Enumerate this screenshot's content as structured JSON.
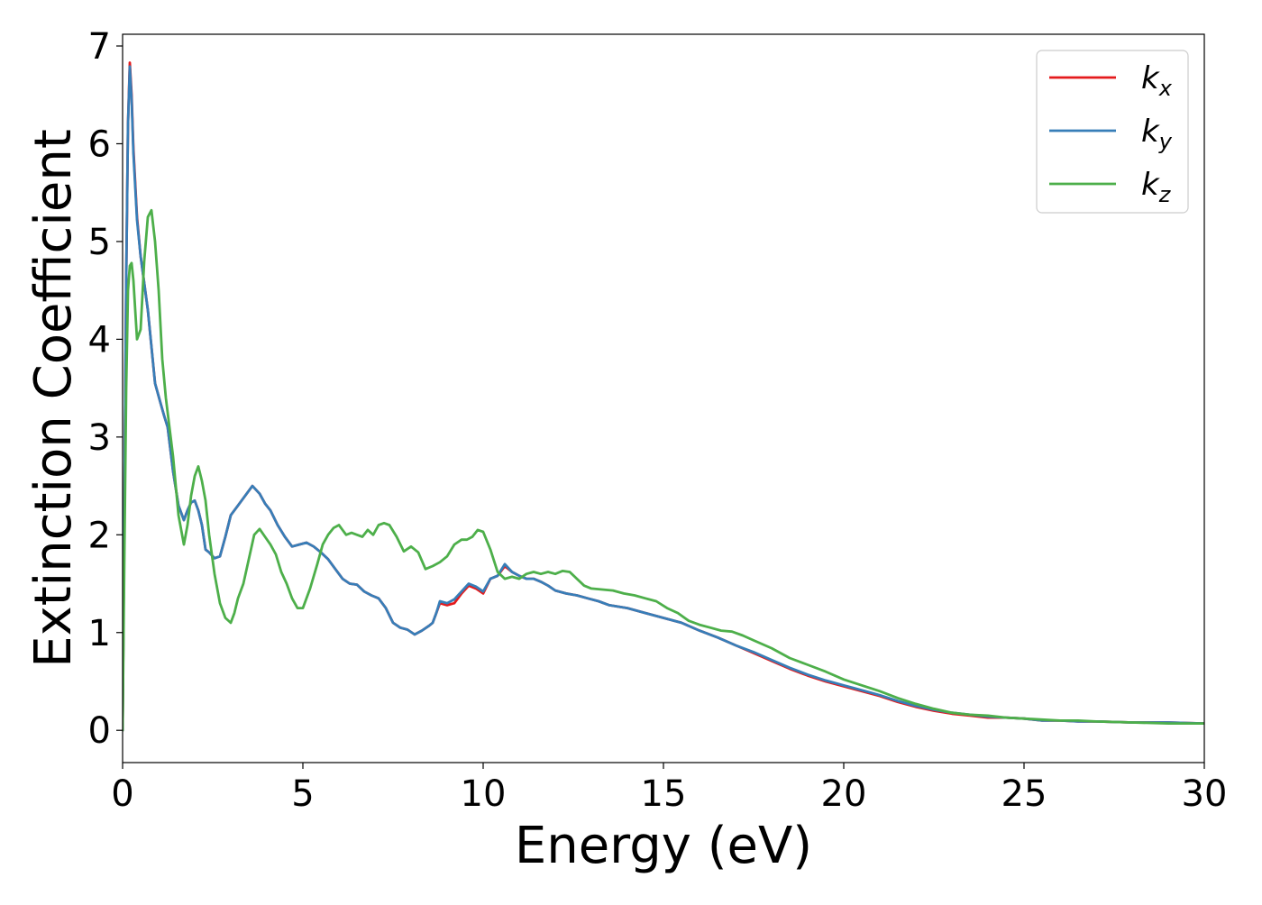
{
  "chart_data": {
    "type": "line",
    "title": "",
    "xlabel": "Energy (eV)",
    "ylabel": "Extinction Coefficient",
    "xlim": [
      0,
      30
    ],
    "ylim": [
      -0.33,
      7.12
    ],
    "xticks": [
      0,
      5,
      10,
      15,
      20,
      25,
      30
    ],
    "yticks": [
      0,
      1,
      2,
      3,
      4,
      5,
      6,
      7
    ],
    "grid": false,
    "legend_position": "top-right",
    "series": [
      {
        "name": "k_x",
        "label_main": "k",
        "label_sub": "x",
        "color": "#e41a1c",
        "x": [
          0,
          0.05,
          0.1,
          0.15,
          0.2,
          0.25,
          0.3,
          0.4,
          0.5,
          0.7,
          0.9,
          1.05,
          1.15,
          1.25,
          1.4,
          1.55,
          1.7,
          1.8,
          1.9,
          2.0,
          2.1,
          2.2,
          2.3,
          2.4,
          2.55,
          2.7,
          2.85,
          3.0,
          3.2,
          3.4,
          3.6,
          3.8,
          3.95,
          4.1,
          4.3,
          4.5,
          4.7,
          4.9,
          5.1,
          5.3,
          5.5,
          5.7,
          5.9,
          6.1,
          6.3,
          6.5,
          6.7,
          6.9,
          7.1,
          7.3,
          7.5,
          7.7,
          7.9,
          8.1,
          8.3,
          8.5,
          8.6,
          8.7,
          8.8,
          9.0,
          9.2,
          9.4,
          9.6,
          9.8,
          10.0,
          10.2,
          10.4,
          10.6,
          10.8,
          11.0,
          11.2,
          11.4,
          11.6,
          11.8,
          12.0,
          12.3,
          12.6,
          12.9,
          13.2,
          13.5,
          14.0,
          14.5,
          15.0,
          15.5,
          16.0,
          16.5,
          17.0,
          17.5,
          18.0,
          18.5,
          19.0,
          19.5,
          20.0,
          20.5,
          21.0,
          21.5,
          22.0,
          22.5,
          23.0,
          23.5,
          24.0,
          24.5,
          25.0,
          25.5,
          26.0,
          26.5,
          27.0,
          28.0,
          29.0,
          30.0
        ],
        "y": [
          0,
          2.3,
          4.6,
          6.2,
          6.83,
          6.5,
          5.95,
          5.25,
          4.85,
          4.3,
          3.55,
          3.35,
          3.22,
          3.1,
          2.65,
          2.3,
          2.15,
          2.25,
          2.33,
          2.35,
          2.25,
          2.1,
          1.85,
          1.82,
          1.76,
          1.78,
          1.98,
          2.2,
          2.3,
          2.4,
          2.5,
          2.42,
          2.32,
          2.25,
          2.1,
          1.98,
          1.88,
          1.9,
          1.92,
          1.88,
          1.82,
          1.75,
          1.65,
          1.55,
          1.5,
          1.49,
          1.42,
          1.38,
          1.35,
          1.25,
          1.1,
          1.05,
          1.03,
          0.98,
          1.02,
          1.07,
          1.1,
          1.2,
          1.3,
          1.28,
          1.3,
          1.4,
          1.48,
          1.45,
          1.4,
          1.55,
          1.58,
          1.68,
          1.62,
          1.58,
          1.55,
          1.55,
          1.52,
          1.48,
          1.43,
          1.4,
          1.38,
          1.35,
          1.32,
          1.28,
          1.25,
          1.2,
          1.15,
          1.1,
          1.02,
          0.95,
          0.87,
          0.79,
          0.71,
          0.63,
          0.56,
          0.5,
          0.45,
          0.4,
          0.35,
          0.29,
          0.24,
          0.2,
          0.17,
          0.15,
          0.13,
          0.13,
          0.12,
          0.1,
          0.1,
          0.09,
          0.09,
          0.08,
          0.08,
          0.07
        ]
      },
      {
        "name": "k_y",
        "label_main": "k",
        "label_sub": "y",
        "color": "#377eb8",
        "x": [
          0,
          0.05,
          0.1,
          0.15,
          0.2,
          0.25,
          0.3,
          0.4,
          0.5,
          0.7,
          0.9,
          1.05,
          1.15,
          1.25,
          1.4,
          1.55,
          1.7,
          1.8,
          1.9,
          2.0,
          2.1,
          2.2,
          2.3,
          2.4,
          2.55,
          2.7,
          2.85,
          3.0,
          3.2,
          3.4,
          3.6,
          3.8,
          3.95,
          4.1,
          4.3,
          4.5,
          4.7,
          4.9,
          5.1,
          5.3,
          5.5,
          5.7,
          5.9,
          6.1,
          6.3,
          6.5,
          6.7,
          6.9,
          7.1,
          7.3,
          7.5,
          7.7,
          7.9,
          8.1,
          8.3,
          8.5,
          8.6,
          8.7,
          8.8,
          9.0,
          9.2,
          9.4,
          9.6,
          9.8,
          10.0,
          10.2,
          10.4,
          10.6,
          10.8,
          11.0,
          11.2,
          11.4,
          11.6,
          11.8,
          12.0,
          12.3,
          12.6,
          12.9,
          13.2,
          13.5,
          14.0,
          14.5,
          15.0,
          15.5,
          16.0,
          16.5,
          17.0,
          17.5,
          18.0,
          18.5,
          19.0,
          19.5,
          20.0,
          20.5,
          21.0,
          21.5,
          22.0,
          22.5,
          23.0,
          23.5,
          24.0,
          24.5,
          25.0,
          25.5,
          26.0,
          26.5,
          27.0,
          28.0,
          29.0,
          30.0
        ],
        "y": [
          0,
          2.3,
          4.6,
          6.2,
          6.79,
          6.45,
          5.9,
          5.22,
          4.85,
          4.3,
          3.55,
          3.35,
          3.22,
          3.1,
          2.65,
          2.3,
          2.15,
          2.25,
          2.33,
          2.35,
          2.25,
          2.1,
          1.85,
          1.82,
          1.76,
          1.78,
          1.98,
          2.2,
          2.3,
          2.4,
          2.5,
          2.42,
          2.32,
          2.25,
          2.1,
          1.98,
          1.88,
          1.9,
          1.92,
          1.88,
          1.82,
          1.75,
          1.65,
          1.55,
          1.5,
          1.49,
          1.42,
          1.38,
          1.35,
          1.25,
          1.1,
          1.05,
          1.03,
          0.98,
          1.02,
          1.07,
          1.1,
          1.2,
          1.32,
          1.3,
          1.34,
          1.42,
          1.5,
          1.47,
          1.42,
          1.55,
          1.58,
          1.7,
          1.62,
          1.58,
          1.55,
          1.55,
          1.52,
          1.48,
          1.43,
          1.4,
          1.38,
          1.35,
          1.32,
          1.28,
          1.25,
          1.2,
          1.15,
          1.1,
          1.02,
          0.95,
          0.87,
          0.8,
          0.72,
          0.64,
          0.57,
          0.51,
          0.46,
          0.41,
          0.36,
          0.3,
          0.25,
          0.21,
          0.18,
          0.16,
          0.14,
          0.13,
          0.12,
          0.1,
          0.1,
          0.09,
          0.09,
          0.08,
          0.08,
          0.07
        ]
      },
      {
        "name": "k_z",
        "label_main": "k",
        "label_sub": "z",
        "color": "#4daf4a",
        "x": [
          0,
          0.05,
          0.1,
          0.15,
          0.2,
          0.25,
          0.3,
          0.4,
          0.5,
          0.6,
          0.7,
          0.8,
          0.9,
          1.0,
          1.1,
          1.2,
          1.3,
          1.4,
          1.55,
          1.7,
          1.8,
          1.9,
          2.0,
          2.1,
          2.2,
          2.3,
          2.4,
          2.55,
          2.7,
          2.85,
          3.0,
          3.1,
          3.2,
          3.35,
          3.5,
          3.65,
          3.8,
          3.95,
          4.1,
          4.25,
          4.4,
          4.55,
          4.7,
          4.85,
          5.0,
          5.2,
          5.4,
          5.55,
          5.7,
          5.85,
          6.0,
          6.1,
          6.2,
          6.35,
          6.5,
          6.65,
          6.8,
          6.95,
          7.1,
          7.25,
          7.4,
          7.6,
          7.8,
          8.0,
          8.2,
          8.4,
          8.6,
          8.8,
          9.0,
          9.2,
          9.4,
          9.55,
          9.7,
          9.85,
          10.0,
          10.2,
          10.4,
          10.6,
          10.8,
          11.0,
          11.2,
          11.4,
          11.6,
          11.8,
          12.0,
          12.2,
          12.4,
          12.6,
          12.8,
          13.0,
          13.3,
          13.6,
          13.9,
          14.2,
          14.5,
          14.8,
          15.1,
          15.4,
          15.7,
          16.0,
          16.3,
          16.6,
          16.9,
          17.2,
          17.5,
          18.0,
          18.5,
          19.0,
          19.5,
          20.0,
          20.5,
          21.0,
          21.5,
          22.0,
          22.5,
          23.0,
          23.5,
          24.0,
          24.5,
          25.0,
          25.5,
          26.0,
          26.5,
          27.0,
          28.0,
          29.0,
          30.0
        ],
        "y": [
          0,
          1.8,
          3.5,
          4.5,
          4.75,
          4.78,
          4.6,
          4.0,
          4.1,
          4.8,
          5.25,
          5.32,
          5.0,
          4.5,
          3.8,
          3.4,
          3.1,
          2.8,
          2.2,
          1.9,
          2.1,
          2.4,
          2.6,
          2.7,
          2.55,
          2.35,
          2.0,
          1.6,
          1.3,
          1.15,
          1.1,
          1.2,
          1.35,
          1.5,
          1.75,
          2.0,
          2.06,
          1.98,
          1.9,
          1.8,
          1.62,
          1.5,
          1.35,
          1.25,
          1.25,
          1.45,
          1.7,
          1.9,
          2.0,
          2.07,
          2.1,
          2.05,
          2.0,
          2.02,
          2.0,
          1.98,
          2.05,
          2.0,
          2.1,
          2.12,
          2.1,
          1.98,
          1.83,
          1.88,
          1.82,
          1.65,
          1.68,
          1.72,
          1.78,
          1.9,
          1.95,
          1.95,
          1.98,
          2.05,
          2.03,
          1.85,
          1.62,
          1.55,
          1.57,
          1.55,
          1.6,
          1.62,
          1.6,
          1.62,
          1.6,
          1.63,
          1.62,
          1.55,
          1.48,
          1.45,
          1.44,
          1.43,
          1.4,
          1.38,
          1.35,
          1.32,
          1.25,
          1.2,
          1.12,
          1.08,
          1.05,
          1.02,
          1.01,
          0.97,
          0.92,
          0.84,
          0.74,
          0.67,
          0.6,
          0.52,
          0.46,
          0.4,
          0.33,
          0.27,
          0.22,
          0.18,
          0.16,
          0.15,
          0.13,
          0.12,
          0.11,
          0.1,
          0.1,
          0.09,
          0.08,
          0.07,
          0.07
        ]
      }
    ]
  }
}
